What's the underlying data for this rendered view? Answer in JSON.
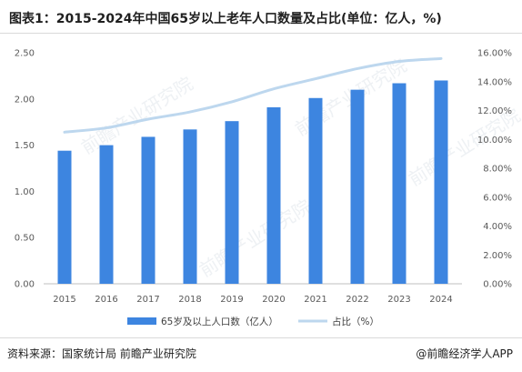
{
  "title": "图表1：2015-2024年中国65岁以上老年人口数量及占比(单位：亿人，%)",
  "source": "资料来源：国家统计局 前瞻产业研究院",
  "brand": "@前瞻经济学人APP",
  "watermark": "前瞻产业研究院",
  "colors": {
    "bar": "#3d85e0",
    "line": "#bdd7ee",
    "axis": "#bfbfbf",
    "text": "#595959"
  },
  "chart_data": {
    "type": "bar",
    "categories": [
      "2015",
      "2016",
      "2017",
      "2018",
      "2019",
      "2020",
      "2021",
      "2022",
      "2023",
      "2024"
    ],
    "series": [
      {
        "name": "65岁及以上人口数（亿人）",
        "type": "bar",
        "axis": "left",
        "values": [
          1.44,
          1.5,
          1.59,
          1.67,
          1.76,
          1.91,
          2.01,
          2.1,
          2.17,
          2.2
        ]
      },
      {
        "name": "占比（%）",
        "type": "line",
        "axis": "right",
        "values": [
          10.5,
          10.8,
          11.4,
          11.9,
          12.6,
          13.5,
          14.2,
          14.9,
          15.4,
          15.6
        ]
      }
    ],
    "y_left": {
      "ylim": [
        0,
        2.5
      ],
      "ticks": [
        "0.00",
        "0.50",
        "1.00",
        "1.50",
        "2.00",
        "2.50"
      ]
    },
    "y_right": {
      "ylim": [
        0,
        16
      ],
      "ticks": [
        "0.00%",
        "2.00%",
        "4.00%",
        "6.00%",
        "8.00%",
        "10.00%",
        "12.00%",
        "14.00%",
        "16.00%"
      ]
    },
    "grid": false,
    "legend_position": "bottom"
  }
}
